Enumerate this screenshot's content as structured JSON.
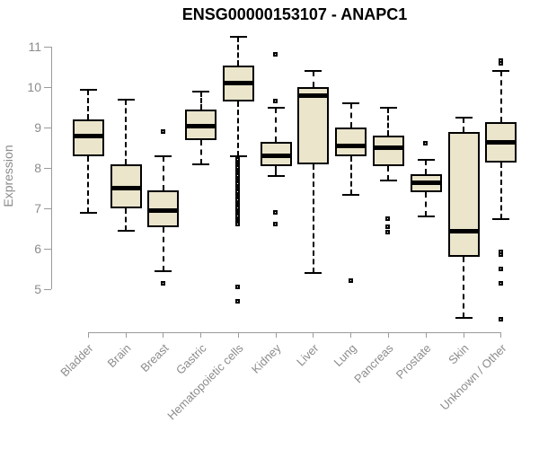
{
  "chart_data": {
    "type": "boxplot",
    "title": "ENSG00000153107 - ANAPC1",
    "ylabel": "Expression",
    "xlabel": "",
    "ylim": [
      5,
      11
    ],
    "yticks": [
      5,
      6,
      7,
      8,
      9,
      10,
      11
    ],
    "grid": false,
    "legend_position": "none",
    "categories": [
      "Bladder",
      "Brain",
      "Breast",
      "Gastric",
      "Hematopoietic cells",
      "Kidney",
      "Liver",
      "Lung",
      "Pancreas",
      "Prostate",
      "Skin",
      "Unknown / Other"
    ],
    "series": [
      {
        "category": "Bladder",
        "whisker_low": 6.9,
        "q1": 8.3,
        "median": 8.8,
        "q3": 9.2,
        "whisker_high": 9.95,
        "outliers": []
      },
      {
        "category": "Brain",
        "whisker_low": 6.45,
        "q1": 7.0,
        "median": 7.5,
        "q3": 8.1,
        "whisker_high": 9.7,
        "outliers": []
      },
      {
        "category": "Breast",
        "whisker_low": 5.45,
        "q1": 6.55,
        "median": 6.95,
        "q3": 7.45,
        "whisker_high": 8.3,
        "outliers": [
          8.9,
          5.15
        ]
      },
      {
        "category": "Gastric",
        "whisker_low": 8.1,
        "q1": 8.7,
        "median": 9.05,
        "q3": 9.45,
        "whisker_high": 9.9,
        "outliers": []
      },
      {
        "category": "Hematopoietic cells",
        "whisker_low": 8.3,
        "q1": 9.65,
        "median": 10.1,
        "q3": 10.55,
        "whisker_high": 11.25,
        "outliers": [
          8.2,
          8.15,
          8.1,
          8.05,
          8.0,
          7.95,
          7.9,
          7.85,
          7.8,
          7.75,
          7.7,
          7.65,
          7.6,
          7.55,
          7.5,
          7.45,
          7.4,
          7.35,
          7.3,
          7.25,
          7.2,
          7.15,
          7.1,
          7.05,
          7.0,
          6.95,
          6.9,
          6.85,
          6.8,
          6.75,
          6.7,
          6.65,
          6.6,
          5.05,
          4.7
        ]
      },
      {
        "category": "Kidney",
        "whisker_low": 7.8,
        "q1": 8.05,
        "median": 8.3,
        "q3": 8.65,
        "whisker_high": 9.5,
        "outliers": [
          10.8,
          9.65,
          6.9,
          6.6
        ]
      },
      {
        "category": "Liver",
        "whisker_low": 5.4,
        "q1": 8.1,
        "median": 9.8,
        "q3": 10.0,
        "whisker_high": 10.4,
        "outliers": []
      },
      {
        "category": "Lung",
        "whisker_low": 7.35,
        "q1": 8.3,
        "median": 8.55,
        "q3": 9.0,
        "whisker_high": 9.6,
        "outliers": [
          5.2
        ]
      },
      {
        "category": "Pancreas",
        "whisker_low": 7.7,
        "q1": 8.05,
        "median": 8.5,
        "q3": 8.8,
        "whisker_high": 9.5,
        "outliers": [
          6.75,
          6.55,
          6.4
        ]
      },
      {
        "category": "Prostate",
        "whisker_low": 6.8,
        "q1": 7.4,
        "median": 7.65,
        "q3": 7.85,
        "whisker_high": 8.2,
        "outliers": [
          8.6
        ]
      },
      {
        "category": "Skin",
        "whisker_low": 4.3,
        "q1": 5.8,
        "median": 6.45,
        "q3": 8.9,
        "whisker_high": 9.25,
        "outliers": []
      },
      {
        "category": "Unknown / Other",
        "whisker_low": 6.75,
        "q1": 8.15,
        "median": 8.65,
        "q3": 9.15,
        "whisker_high": 10.4,
        "outliers": [
          10.65,
          10.58,
          5.92,
          5.86,
          5.5,
          5.15,
          4.25
        ]
      }
    ],
    "colors": {
      "box_fill": "#EAE5CB",
      "box_border": "#000000",
      "median": "#000000",
      "whisker": "#000000",
      "outlier_border": "#000000",
      "outlier_fill": "#FFFFFF",
      "axis": "#9A9A9A",
      "tick_label": "#8C8C8C",
      "axis_label": "#8C8C8C",
      "title": "#000000",
      "background": "#FFFFFF"
    }
  }
}
